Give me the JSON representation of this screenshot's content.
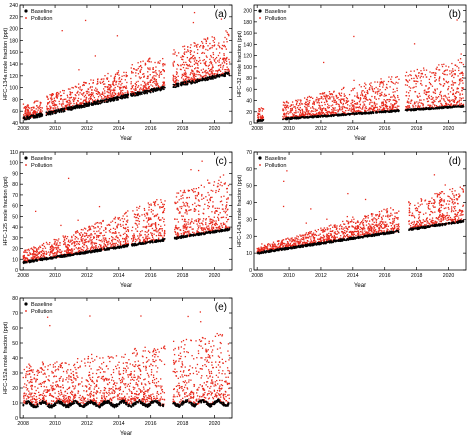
{
  "chart_data": [
    {
      "id": "a",
      "type": "scatter",
      "panel_label": "(a)",
      "ylabel": "HFC-134a mole fraction (ppt)",
      "xlabel": "Year",
      "xlim": [
        2007.8,
        2021.1
      ],
      "ylim": [
        40,
        240
      ],
      "yticks": [
        40,
        60,
        80,
        100,
        120,
        140,
        160,
        180,
        200,
        220,
        240
      ],
      "xticks": [
        2008,
        2010,
        2012,
        2014,
        2016,
        2018,
        2020
      ],
      "legend": {
        "position": "top-left",
        "entries": [
          "Baseline",
          "Pollution"
        ]
      },
      "series": [
        {
          "name": "Baseline",
          "color": "#000000",
          "baseline_start": 47,
          "baseline_end": 124,
          "scatter": 3,
          "summary": "dense dark band rising"
        },
        {
          "name": "Pollution",
          "color": "#e8291c",
          "spread_start": 14,
          "spread_end": 42,
          "max_outlier": 235
        }
      ],
      "gaps": [
        [
          2009.2,
          2009.45
        ],
        [
          2014.6,
          2014.75
        ],
        [
          2016.9,
          2017.4
        ],
        [
          2017.75,
          2017.85
        ]
      ]
    },
    {
      "id": "b",
      "type": "scatter",
      "panel_label": "(b)",
      "ylabel": "HFC-32 mole fraction (ppt)",
      "xlabel": "Year",
      "xlim": [
        2007.8,
        2021.1
      ],
      "ylim": [
        0,
        210
      ],
      "yticks": [
        0,
        20,
        40,
        60,
        80,
        100,
        120,
        140,
        160,
        180,
        200
      ],
      "xticks": [
        2008,
        2010,
        2012,
        2014,
        2016,
        2018,
        2020
      ],
      "legend": {
        "position": "top-left",
        "entries": [
          "Baseline",
          "Pollution"
        ]
      },
      "series": [
        {
          "name": "Baseline",
          "color": "#000000",
          "baseline_start": 4,
          "baseline_end": 30,
          "scatter": 1.5
        },
        {
          "name": "Pollution",
          "color": "#e8291c",
          "spread_start": 12,
          "spread_end": 48,
          "max_outlier": 190
        }
      ],
      "gaps": [
        [
          2008.4,
          2009.6
        ],
        [
          2016.9,
          2017.3
        ]
      ]
    },
    {
      "id": "c",
      "type": "scatter",
      "panel_label": "(c)",
      "ylabel": "HFC-125 mole fraction (ppt)",
      "xlabel": "Year",
      "xlim": [
        2007.8,
        2021.1
      ],
      "ylim": [
        0,
        110
      ],
      "yticks": [
        0,
        10,
        20,
        30,
        40,
        50,
        60,
        70,
        80,
        90,
        100,
        110
      ],
      "xticks": [
        2008,
        2010,
        2012,
        2014,
        2016,
        2018,
        2020
      ],
      "legend": {
        "position": "top-left",
        "entries": [
          "Baseline",
          "Pollution"
        ]
      },
      "series": [
        {
          "name": "Baseline",
          "color": "#000000",
          "baseline_start": 7,
          "baseline_end": 38,
          "scatter": 1
        },
        {
          "name": "Pollution",
          "color": "#e8291c",
          "spread_start": 6,
          "spread_end": 30,
          "max_outlier": 113
        }
      ],
      "gaps": [
        [
          2014.6,
          2014.8
        ],
        [
          2016.9,
          2017.5
        ]
      ]
    },
    {
      "id": "d",
      "type": "scatter",
      "panel_label": "(d)",
      "ylabel": "HFC-143a mole fraction (ppt)",
      "xlabel": "Year",
      "xlim": [
        2007.8,
        2021.1
      ],
      "ylim": [
        0,
        70
      ],
      "yticks": [
        0,
        10,
        20,
        30,
        40,
        50,
        60,
        70
      ],
      "xticks": [
        2008,
        2010,
        2012,
        2014,
        2016,
        2018,
        2020
      ],
      "legend": {
        "position": "top-left",
        "entries": [
          "Baseline",
          "Pollution"
        ]
      },
      "series": [
        {
          "name": "Baseline",
          "color": "#000000",
          "baseline_start": 10,
          "baseline_end": 29,
          "scatter": 0.6
        },
        {
          "name": "Pollution",
          "color": "#e8291c",
          "spread_start": 2,
          "spread_end": 12,
          "max_outlier": 65
        }
      ],
      "gaps": [
        [
          2016.9,
          2017.5
        ]
      ]
    },
    {
      "id": "e",
      "type": "scatter",
      "panel_label": "(e)",
      "ylabel": "HFC-152a mole fraction (ppt)",
      "xlabel": "Year",
      "xlim": [
        2007.8,
        2021.1
      ],
      "ylim": [
        0,
        80
      ],
      "yticks": [
        0,
        10,
        20,
        30,
        40,
        50,
        60,
        70,
        80
      ],
      "xticks": [
        2008,
        2010,
        2012,
        2014,
        2016,
        2018,
        2020
      ],
      "legend": {
        "position": "top-left",
        "entries": [
          "Baseline",
          "Pollution"
        ]
      },
      "series": [
        {
          "name": "Baseline",
          "color": "#000000",
          "baseline_start": 9,
          "baseline_end": 10,
          "scatter": 1,
          "seasonal_amplitude": 1.5
        },
        {
          "name": "Pollution",
          "color": "#e8291c",
          "spread_start": 14,
          "spread_end": 26,
          "max_outlier": 72
        }
      ],
      "gaps": [
        [
          2016.9,
          2017.4
        ]
      ]
    }
  ]
}
